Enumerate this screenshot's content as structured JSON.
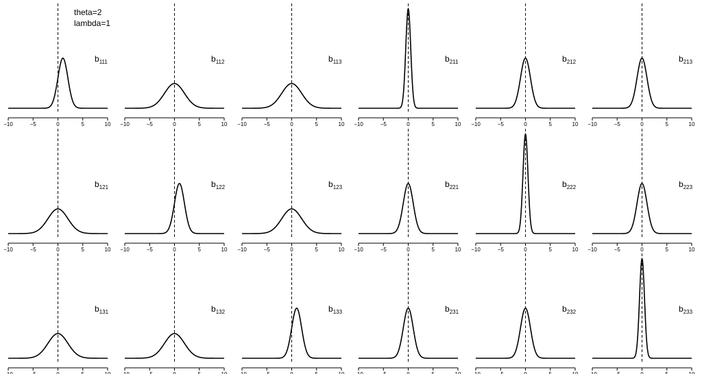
{
  "annotation": {
    "line1": "theta=2",
    "line2": "lambda=1"
  },
  "chart_data": {
    "type": "line",
    "layout": "3 rows x 6 columns of density curves",
    "xlim": [
      -10,
      10
    ],
    "xticks": [
      -10,
      -5,
      0,
      5,
      10
    ],
    "xtick_labels": [
      "−10",
      "−5",
      "0",
      "5",
      "10"
    ],
    "reference_line_x": 0,
    "reference_line_style": "dashed",
    "panels": [
      {
        "label_main": "b",
        "label_sub": "111",
        "mean": 1,
        "sd": 1,
        "peak_rel": 0.71
      },
      {
        "label_main": "b",
        "label_sub": "112",
        "mean": 0,
        "sd": 2,
        "peak_rel": 0.35
      },
      {
        "label_main": "b",
        "label_sub": "113",
        "mean": 0,
        "sd": 2,
        "peak_rel": 0.35
      },
      {
        "label_main": "b",
        "label_sub": "211",
        "mean": 0,
        "sd": 0.5,
        "peak_rel": 1.41
      },
      {
        "label_main": "b",
        "label_sub": "212",
        "mean": 0,
        "sd": 1,
        "peak_rel": 0.71
      },
      {
        "label_main": "b",
        "label_sub": "213",
        "mean": 0,
        "sd": 1,
        "peak_rel": 0.71
      },
      {
        "label_main": "b",
        "label_sub": "121",
        "mean": 0,
        "sd": 2,
        "peak_rel": 0.35
      },
      {
        "label_main": "b",
        "label_sub": "122",
        "mean": 1,
        "sd": 1,
        "peak_rel": 0.71
      },
      {
        "label_main": "b",
        "label_sub": "123",
        "mean": 0,
        "sd": 2,
        "peak_rel": 0.35
      },
      {
        "label_main": "b",
        "label_sub": "221",
        "mean": 0,
        "sd": 1,
        "peak_rel": 0.71
      },
      {
        "label_main": "b",
        "label_sub": "222",
        "mean": 0,
        "sd": 0.5,
        "peak_rel": 1.41
      },
      {
        "label_main": "b",
        "label_sub": "223",
        "mean": 0,
        "sd": 1,
        "peak_rel": 0.71
      },
      {
        "label_main": "b",
        "label_sub": "131",
        "mean": 0,
        "sd": 2,
        "peak_rel": 0.35
      },
      {
        "label_main": "b",
        "label_sub": "132",
        "mean": 0,
        "sd": 2,
        "peak_rel": 0.35
      },
      {
        "label_main": "b",
        "label_sub": "133",
        "mean": 1,
        "sd": 1,
        "peak_rel": 0.71
      },
      {
        "label_main": "b",
        "label_sub": "231",
        "mean": 0,
        "sd": 1,
        "peak_rel": 0.71
      },
      {
        "label_main": "b",
        "label_sub": "232",
        "mean": 0,
        "sd": 1,
        "peak_rel": 0.71
      },
      {
        "label_main": "b",
        "label_sub": "233",
        "mean": 0,
        "sd": 0.5,
        "peak_rel": 1.41
      }
    ]
  }
}
